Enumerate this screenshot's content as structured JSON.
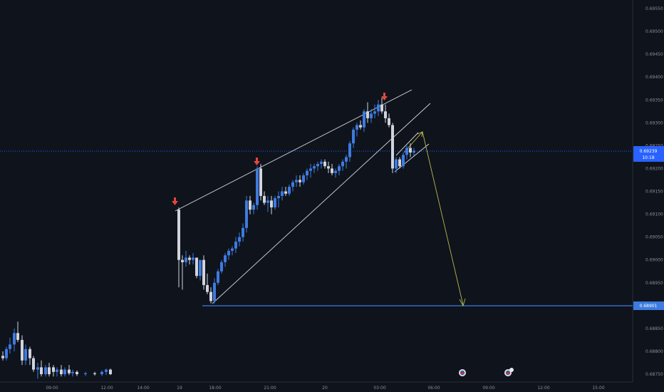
{
  "chart_data": {
    "type": "candlestick",
    "instrument_bars": [
      {
        "t": "09:00 -12",
        "o": 0.6879,
        "h": 0.688,
        "l": 0.6878,
        "c": 0.68785
      },
      {
        "t": "09:15 -12",
        "o": 0.68785,
        "h": 0.6881,
        "l": 0.6878,
        "c": 0.68805
      },
      {
        "t": "09:30 -12",
        "o": 0.68805,
        "h": 0.6883,
        "l": 0.68795,
        "c": 0.68815
      },
      {
        "t": "09:45 -12",
        "o": 0.68815,
        "h": 0.6885,
        "l": 0.688,
        "c": 0.6884
      },
      {
        "t": "10:00 -12",
        "o": 0.6884,
        "h": 0.68865,
        "l": 0.6882,
        "c": 0.68825
      },
      {
        "t": "10:15 -12",
        "o": 0.68825,
        "h": 0.68835,
        "l": 0.6877,
        "c": 0.6878
      },
      {
        "t": "10:30 -12",
        "o": 0.6878,
        "h": 0.68815,
        "l": 0.6877,
        "c": 0.68805
      },
      {
        "t": "10:45 -12",
        "o": 0.68805,
        "h": 0.6881,
        "l": 0.6877,
        "c": 0.68785
      },
      {
        "t": "11:00 -12",
        "o": 0.68785,
        "h": 0.6879,
        "l": 0.68755,
        "c": 0.6876
      },
      {
        "t": "11:15 -12",
        "o": 0.6876,
        "h": 0.68775,
        "l": 0.6874,
        "c": 0.68765
      },
      {
        "t": "11:30 -12",
        "o": 0.68765,
        "h": 0.6878,
        "l": 0.68745,
        "c": 0.6875
      },
      {
        "t": "11:45 -12",
        "o": 0.6875,
        "h": 0.6877,
        "l": 0.68745,
        "c": 0.68765
      },
      {
        "t": "12:00 -12",
        "o": 0.68765,
        "h": 0.68775,
        "l": 0.68745,
        "c": 0.6875
      }
    ],
    "price_axis_ticks": [
      "0.69550",
      "0.69500",
      "0.69450",
      "0.69400",
      "0.69350",
      "0.69300",
      "0.69250",
      "0.69200",
      "0.69150",
      "0.69100",
      "0.69050",
      "0.69000",
      "0.68950",
      "0.68900",
      "0.68850",
      "0.68800",
      "0.68750"
    ],
    "time_axis_ticks": [
      "09:00",
      "12:00",
      "14:00",
      "19",
      "18:00",
      "21:00",
      "20",
      "03:00",
      "06:00",
      "09:00",
      "12:00",
      "15:00"
    ],
    "current_price": {
      "value": "0.69239",
      "countdown": "10:18",
      "color": "#2962ff"
    },
    "target_level": {
      "value": "0.68901",
      "color": "#3d7be0"
    },
    "colors": {
      "up": "#3d7be0",
      "down": "#d1d4dc",
      "arrow": "#e0473b",
      "projection": "#b7ba4c",
      "trendline": "#d1d4dc"
    },
    "grid": false,
    "annotations": [
      "down-arrow",
      "down-arrow",
      "down-arrow",
      "projection-arrow",
      "rising-wedge",
      "rising-channel"
    ]
  }
}
